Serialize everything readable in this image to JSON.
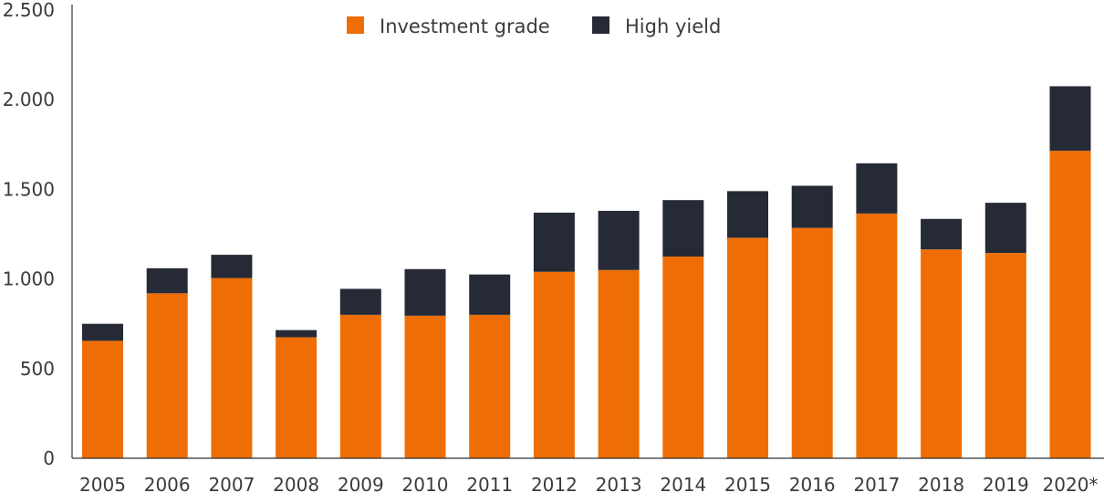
{
  "chart_data": {
    "type": "bar",
    "stacked": true,
    "title": "",
    "xlabel": "",
    "ylabel": "",
    "ylim": [
      0,
      2500
    ],
    "yticks": [
      {
        "value": 0,
        "label": "0"
      },
      {
        "value": 500,
        "label": "500"
      },
      {
        "value": 1000,
        "label": "1.000"
      },
      {
        "value": 1500,
        "label": "1.500"
      },
      {
        "value": 2000,
        "label": "2.000"
      },
      {
        "value": 2500,
        "label": "2.500"
      }
    ],
    "categories": [
      "2005",
      "2006",
      "2007",
      "2008",
      "2009",
      "2010",
      "2011",
      "2012",
      "2013",
      "2014",
      "2015",
      "2016",
      "2017",
      "2018",
      "2019",
      "2020*"
    ],
    "series": [
      {
        "name": "Investment grade",
        "color": "#ee6e05",
        "values": [
          655,
          920,
          1005,
          675,
          800,
          795,
          800,
          1040,
          1050,
          1125,
          1230,
          1285,
          1365,
          1165,
          1145,
          1715
        ]
      },
      {
        "name": "High yield",
        "color": "#262a36",
        "values": [
          95,
          140,
          130,
          40,
          145,
          260,
          225,
          330,
          330,
          315,
          260,
          235,
          280,
          170,
          280,
          360
        ]
      }
    ],
    "legend": {
      "position": "top-center"
    },
    "grid": false
  }
}
